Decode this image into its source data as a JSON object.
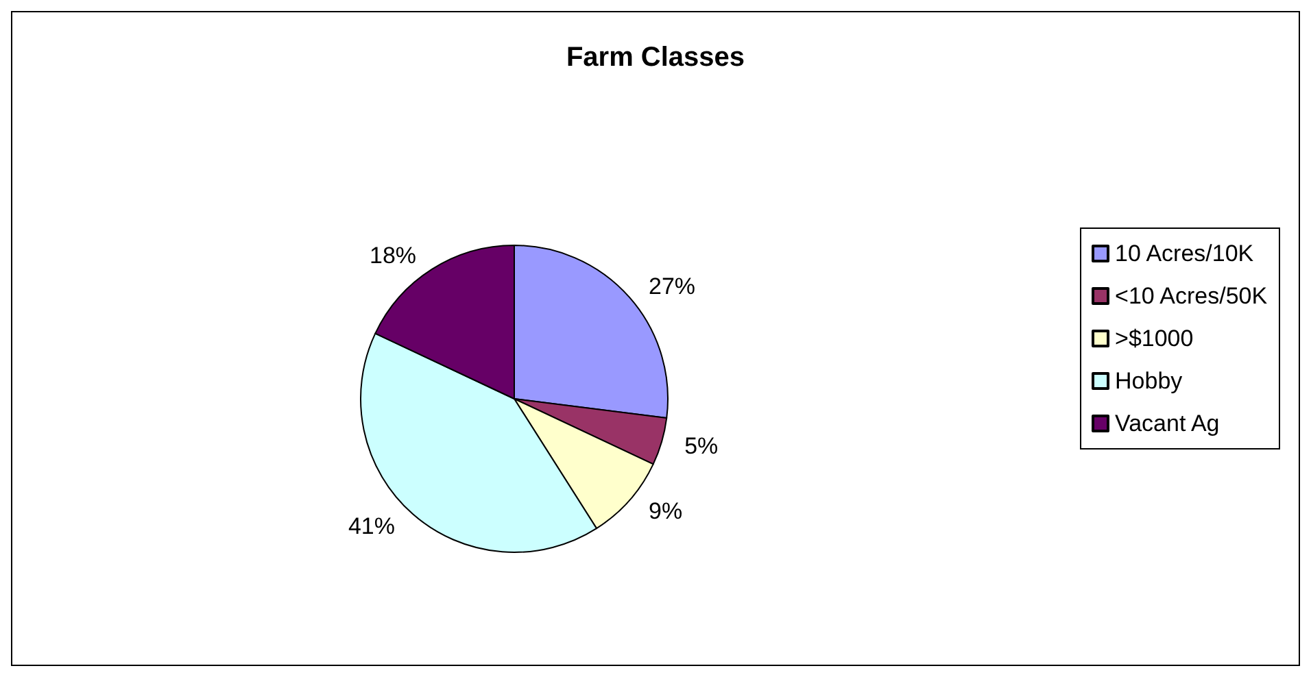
{
  "chart_data": {
    "type": "pie",
    "title": "Farm Classes",
    "categories": [
      "10 Acres/10K",
      "<10 Acres/50K",
      ">$1000",
      "Hobby",
      "Vacant Ag"
    ],
    "values": [
      27,
      5,
      9,
      41,
      18
    ],
    "colors": [
      "#9999ff",
      "#993366",
      "#ffffcc",
      "#ccffff",
      "#660066"
    ],
    "value_labels": [
      "27%",
      "5%",
      "9%",
      "41%",
      "18%"
    ],
    "legend": "right"
  }
}
